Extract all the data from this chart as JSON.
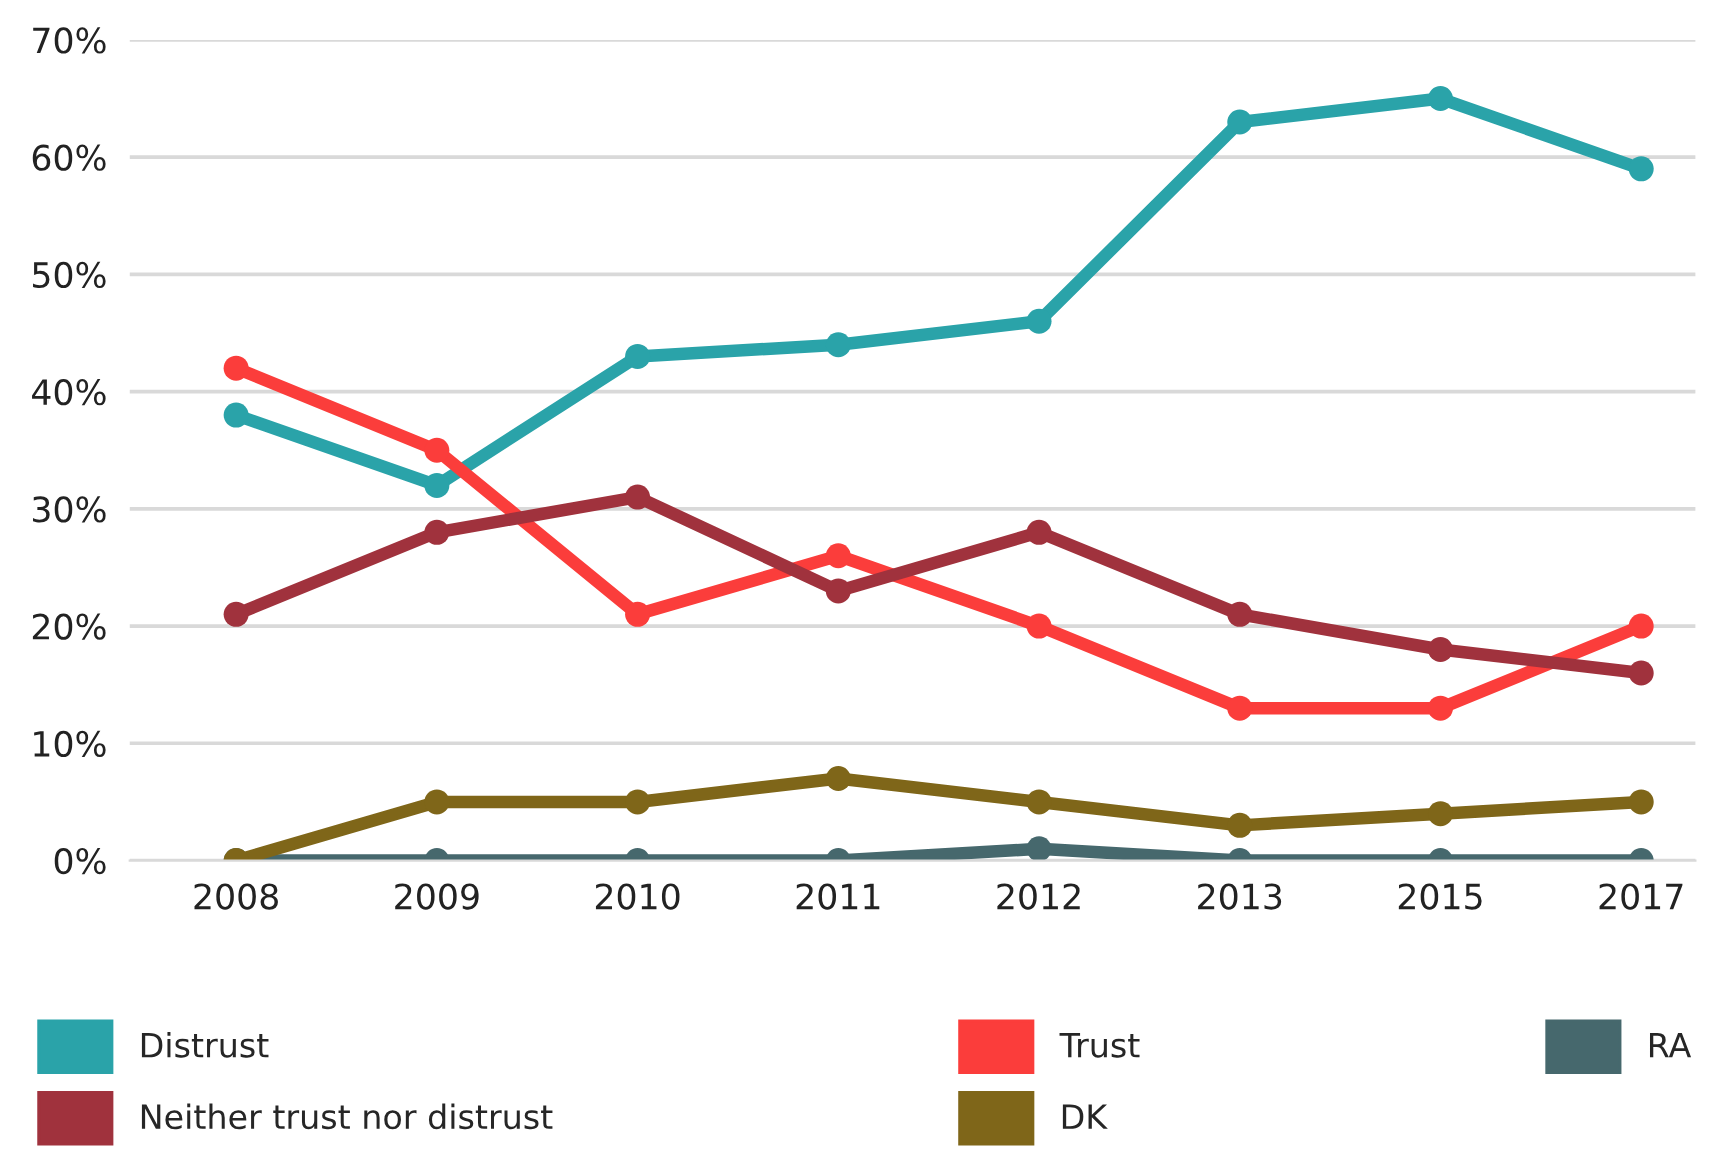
{
  "chart_data": {
    "type": "line",
    "categories": [
      "2008",
      "2009",
      "2010",
      "2011",
      "2012",
      "2013",
      "2015",
      "2017"
    ],
    "series": [
      {
        "name": "Distrust",
        "color": "#2aa3a9",
        "values": [
          38,
          32,
          43,
          44,
          46,
          63,
          65,
          59
        ]
      },
      {
        "name": "Trust",
        "color": "#fb3d3b",
        "values": [
          42,
          35,
          21,
          26,
          20,
          13,
          13,
          20
        ]
      },
      {
        "name": "RA",
        "color": "#46686d",
        "values": [
          0,
          0,
          0,
          0,
          1,
          0,
          0,
          0
        ]
      },
      {
        "name": "Neither trust nor distrust",
        "color": "#a0323d",
        "values": [
          21,
          28,
          31,
          23,
          28,
          21,
          18,
          16
        ]
      },
      {
        "name": "DK",
        "color": "#7f6619",
        "values": [
          0,
          5,
          5,
          7,
          5,
          3,
          4,
          5
        ]
      }
    ],
    "ylim": [
      0,
      70
    ],
    "yticks": [
      {
        "value": 0,
        "label": "0%"
      },
      {
        "value": 10,
        "label": "10%"
      },
      {
        "value": 20,
        "label": "20%"
      },
      {
        "value": 30,
        "label": "30%"
      },
      {
        "value": 40,
        "label": "40%"
      },
      {
        "value": 50,
        "label": "50%"
      },
      {
        "value": 60,
        "label": "60%"
      },
      {
        "value": 70,
        "label": "70%"
      }
    ],
    "grid": "y",
    "legend": "bottom",
    "marker": "circle",
    "line_style": "solid"
  }
}
